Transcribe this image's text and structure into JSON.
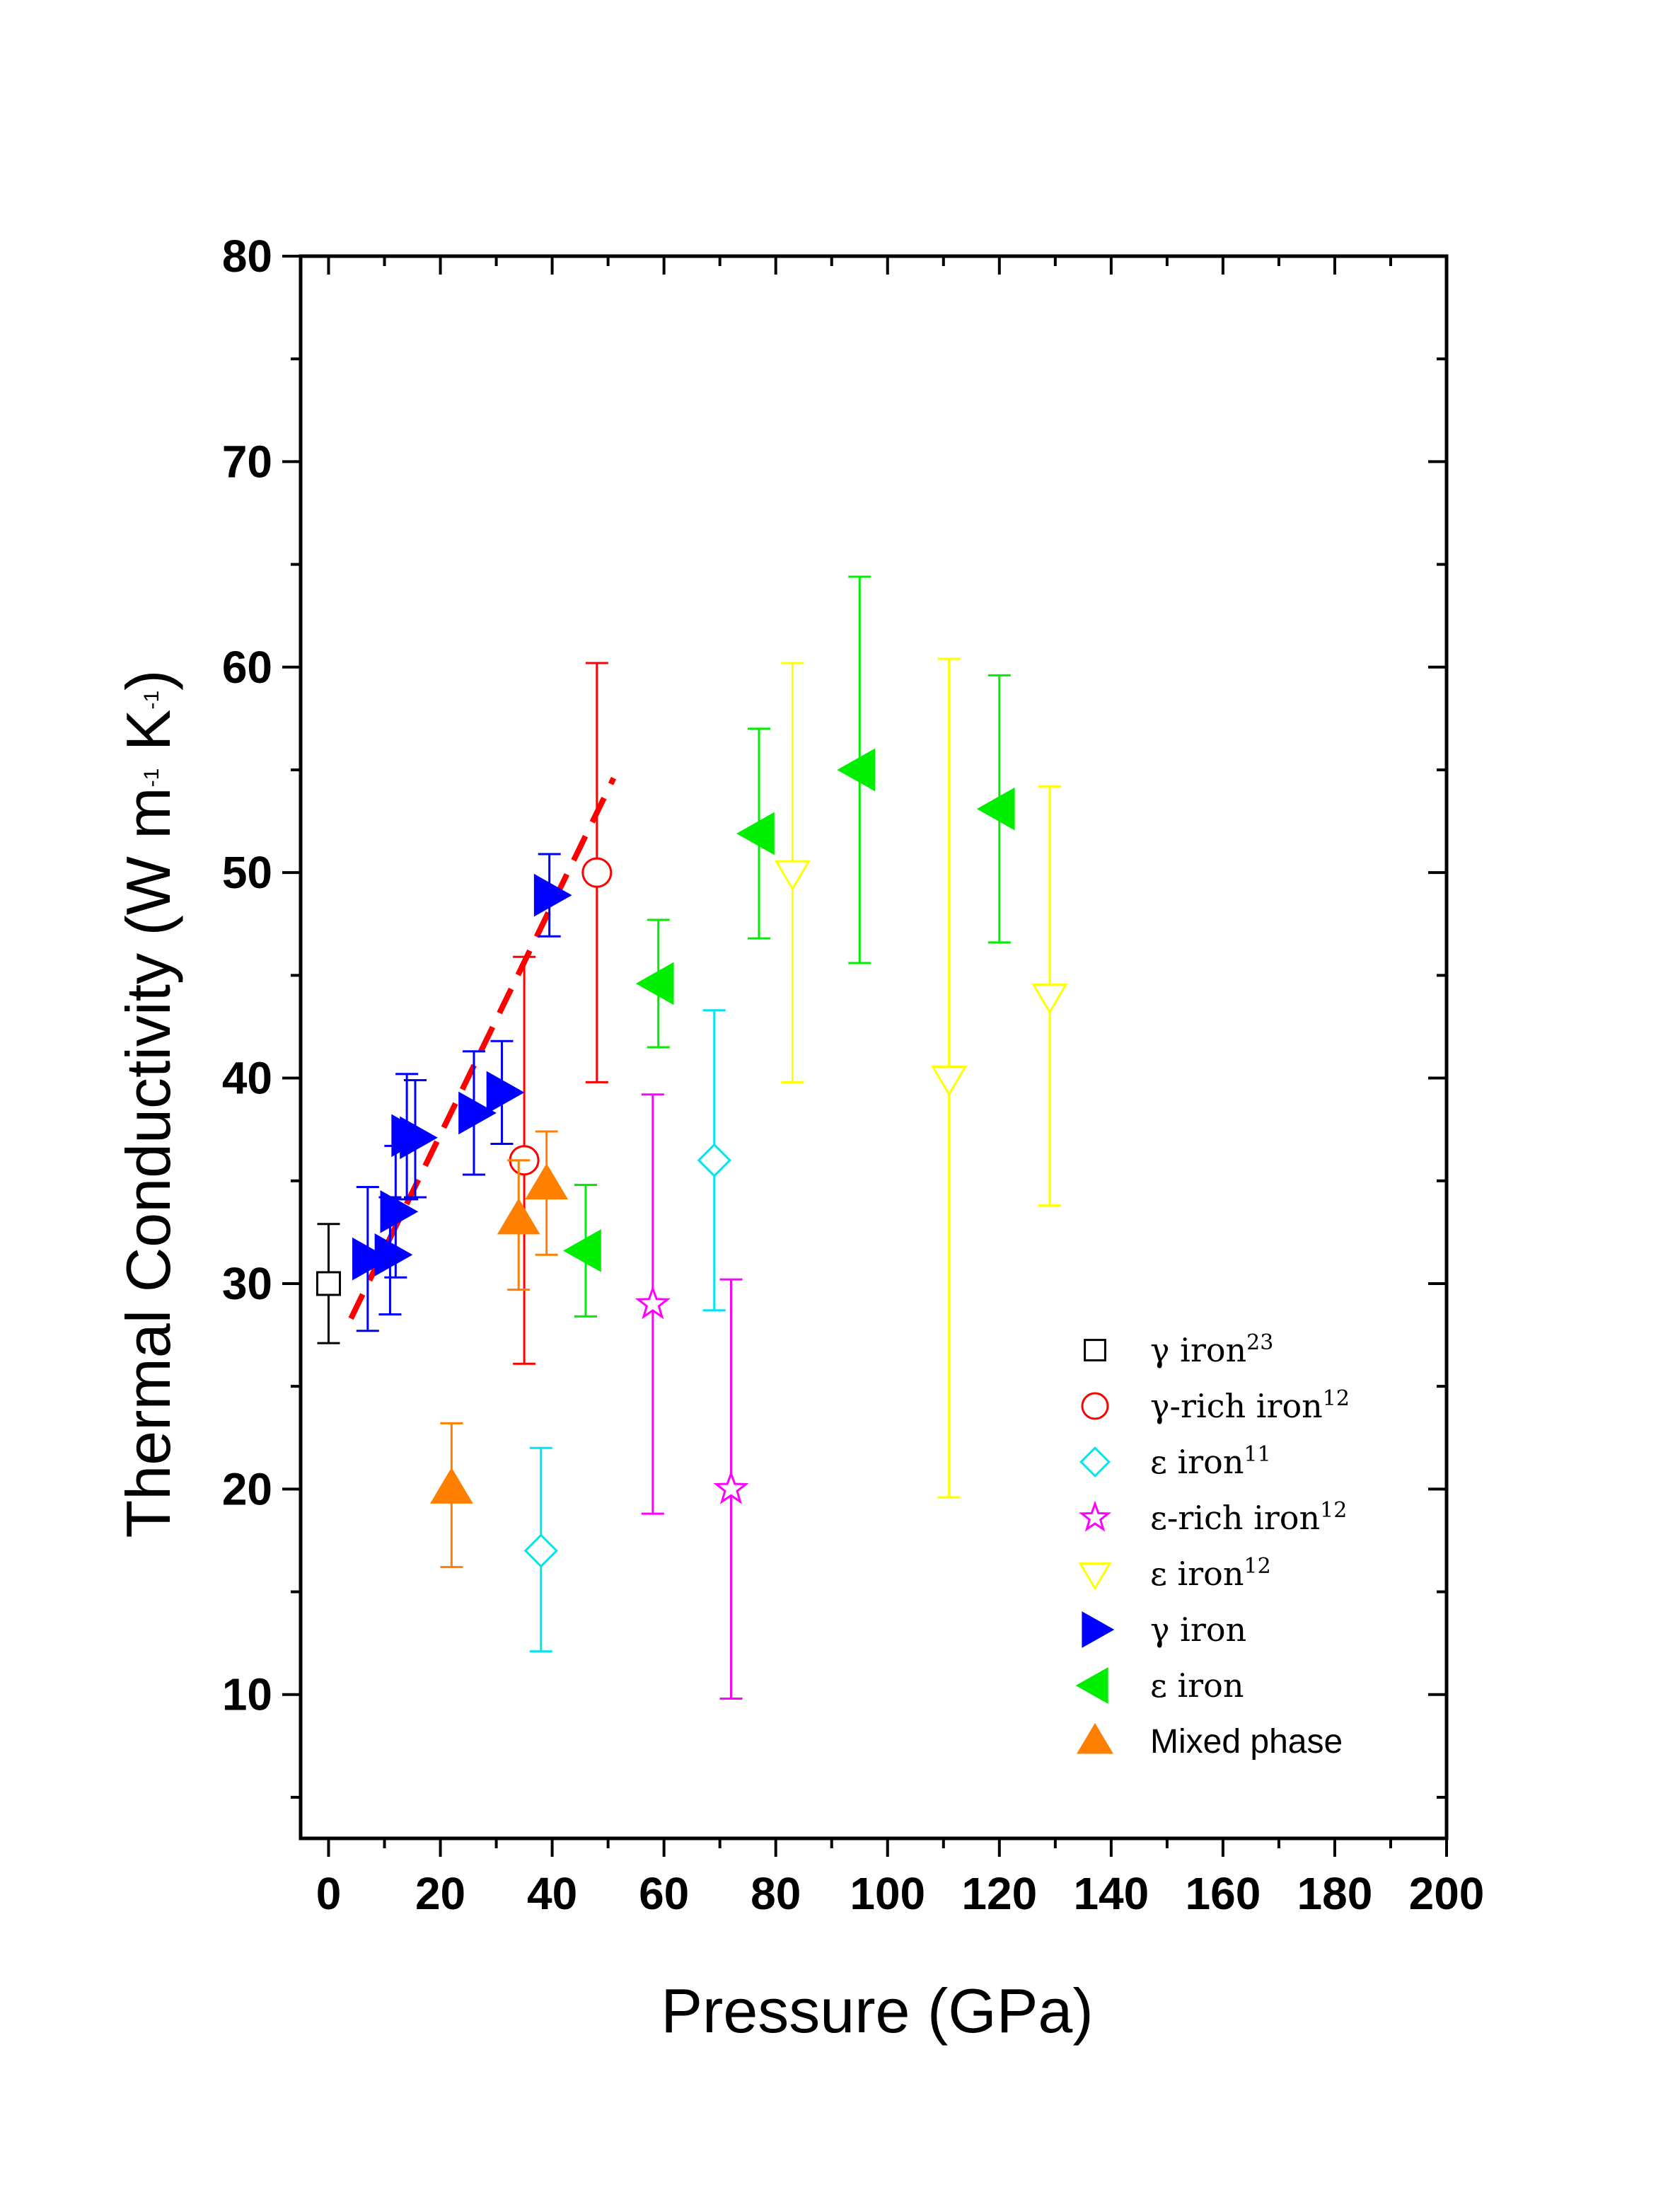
{
  "chart_data": {
    "type": "scatter",
    "xlabel": "Pressure (GPa)",
    "ylabel": "Thermal Conductivity (W m⁻¹ K⁻¹)",
    "ylabel_parts": {
      "main": "Thermal Conductivity (W m",
      "exp1": "-1",
      "mid": " K",
      "exp2": "-1",
      "end": ")"
    },
    "xlim": [
      -5,
      200
    ],
    "ylim": [
      3,
      80
    ],
    "xticks": [
      0,
      20,
      40,
      60,
      80,
      100,
      120,
      140,
      160,
      180,
      200
    ],
    "yticks": [
      10,
      20,
      30,
      40,
      50,
      60,
      70,
      80
    ],
    "legend_position": "lower-right",
    "series": [
      {
        "name": "γ iron",
        "ref": "23",
        "marker": "square",
        "filled": false,
        "color": "#000000",
        "points": [
          {
            "x": 0,
            "y": 30,
            "ylo": 27.1,
            "yhi": 32.9
          }
        ]
      },
      {
        "name": "γ-rich iron",
        "ref": "12",
        "marker": "circle",
        "filled": false,
        "color": "#ff0000",
        "points": [
          {
            "x": 35,
            "y": 36,
            "ylo": 26.1,
            "yhi": 45.9
          },
          {
            "x": 48,
            "y": 50,
            "ylo": 39.8,
            "yhi": 60.2
          }
        ]
      },
      {
        "name": "ε iron",
        "ref": "11",
        "marker": "diamond",
        "filled": false,
        "color": "#00e5ee",
        "points": [
          {
            "x": 38,
            "y": 17,
            "ylo": 12.1,
            "yhi": 22
          },
          {
            "x": 69,
            "y": 36,
            "ylo": 28.7,
            "yhi": 43.3
          }
        ]
      },
      {
        "name": "ε-rich iron",
        "ref": "12",
        "marker": "star",
        "filled": false,
        "color": "#ff00ff",
        "points": [
          {
            "x": 58,
            "y": 29,
            "ylo": 18.8,
            "yhi": 39.2
          },
          {
            "x": 72,
            "y": 20,
            "ylo": 9.8,
            "yhi": 30.2
          }
        ]
      },
      {
        "name": "ε iron",
        "ref": "12",
        "marker": "triangle-down",
        "filled": false,
        "color": "#ffff00",
        "points": [
          {
            "x": 83,
            "y": 50,
            "ylo": 39.8,
            "yhi": 60.2
          },
          {
            "x": 111,
            "y": 40,
            "ylo": 19.6,
            "yhi": 60.4
          },
          {
            "x": 129,
            "y": 44,
            "ylo": 33.8,
            "yhi": 54.2
          }
        ]
      },
      {
        "name": "γ iron",
        "ref": "",
        "marker": "triangle-right",
        "filled": true,
        "color": "#0000ff",
        "points": [
          {
            "x": 7,
            "y": 31.2,
            "ylo": 27.7,
            "yhi": 34.7
          },
          {
            "x": 11,
            "y": 31.4,
            "ylo": 28.5,
            "yhi": 34.2
          },
          {
            "x": 12,
            "y": 33.5,
            "ylo": 30.3,
            "yhi": 36.7
          },
          {
            "x": 14,
            "y": 37.2,
            "ylo": 34.1,
            "yhi": 40.2
          },
          {
            "x": 15.5,
            "y": 37.1,
            "ylo": 34.2,
            "yhi": 39.9
          },
          {
            "x": 26,
            "y": 38.3,
            "ylo": 35.3,
            "yhi": 41.3
          },
          {
            "x": 31,
            "y": 39.3,
            "ylo": 36.8,
            "yhi": 41.8
          },
          {
            "x": 39.5,
            "y": 48.9,
            "ylo": 46.9,
            "yhi": 50.9
          }
        ]
      },
      {
        "name": "ε iron",
        "ref": "",
        "marker": "triangle-left",
        "filled": true,
        "color": "#00ee00",
        "points": [
          {
            "x": 46,
            "y": 31.6,
            "ylo": 28.4,
            "yhi": 34.8
          },
          {
            "x": 59,
            "y": 44.6,
            "ylo": 41.5,
            "yhi": 47.7
          },
          {
            "x": 77,
            "y": 51.9,
            "ylo": 46.8,
            "yhi": 57
          },
          {
            "x": 95,
            "y": 55,
            "ylo": 45.6,
            "yhi": 64.4
          },
          {
            "x": 120,
            "y": 53.1,
            "ylo": 46.6,
            "yhi": 59.6
          }
        ]
      },
      {
        "name": "Mixed phase",
        "ref": "",
        "marker": "triangle-up",
        "filled": true,
        "color": "#ff7f00",
        "points": [
          {
            "x": 22,
            "y": 20,
            "ylo": 16.2,
            "yhi": 23.2
          },
          {
            "x": 34,
            "y": 33.1,
            "ylo": 29.7,
            "yhi": 36
          },
          {
            "x": 39,
            "y": 34.8,
            "ylo": 31.4,
            "yhi": 37.4
          }
        ]
      }
    ],
    "fit_line": {
      "style": "dashed",
      "color": "#ff0000",
      "x": [
        4,
        51
      ],
      "y": [
        28.3,
        54.6
      ]
    }
  }
}
